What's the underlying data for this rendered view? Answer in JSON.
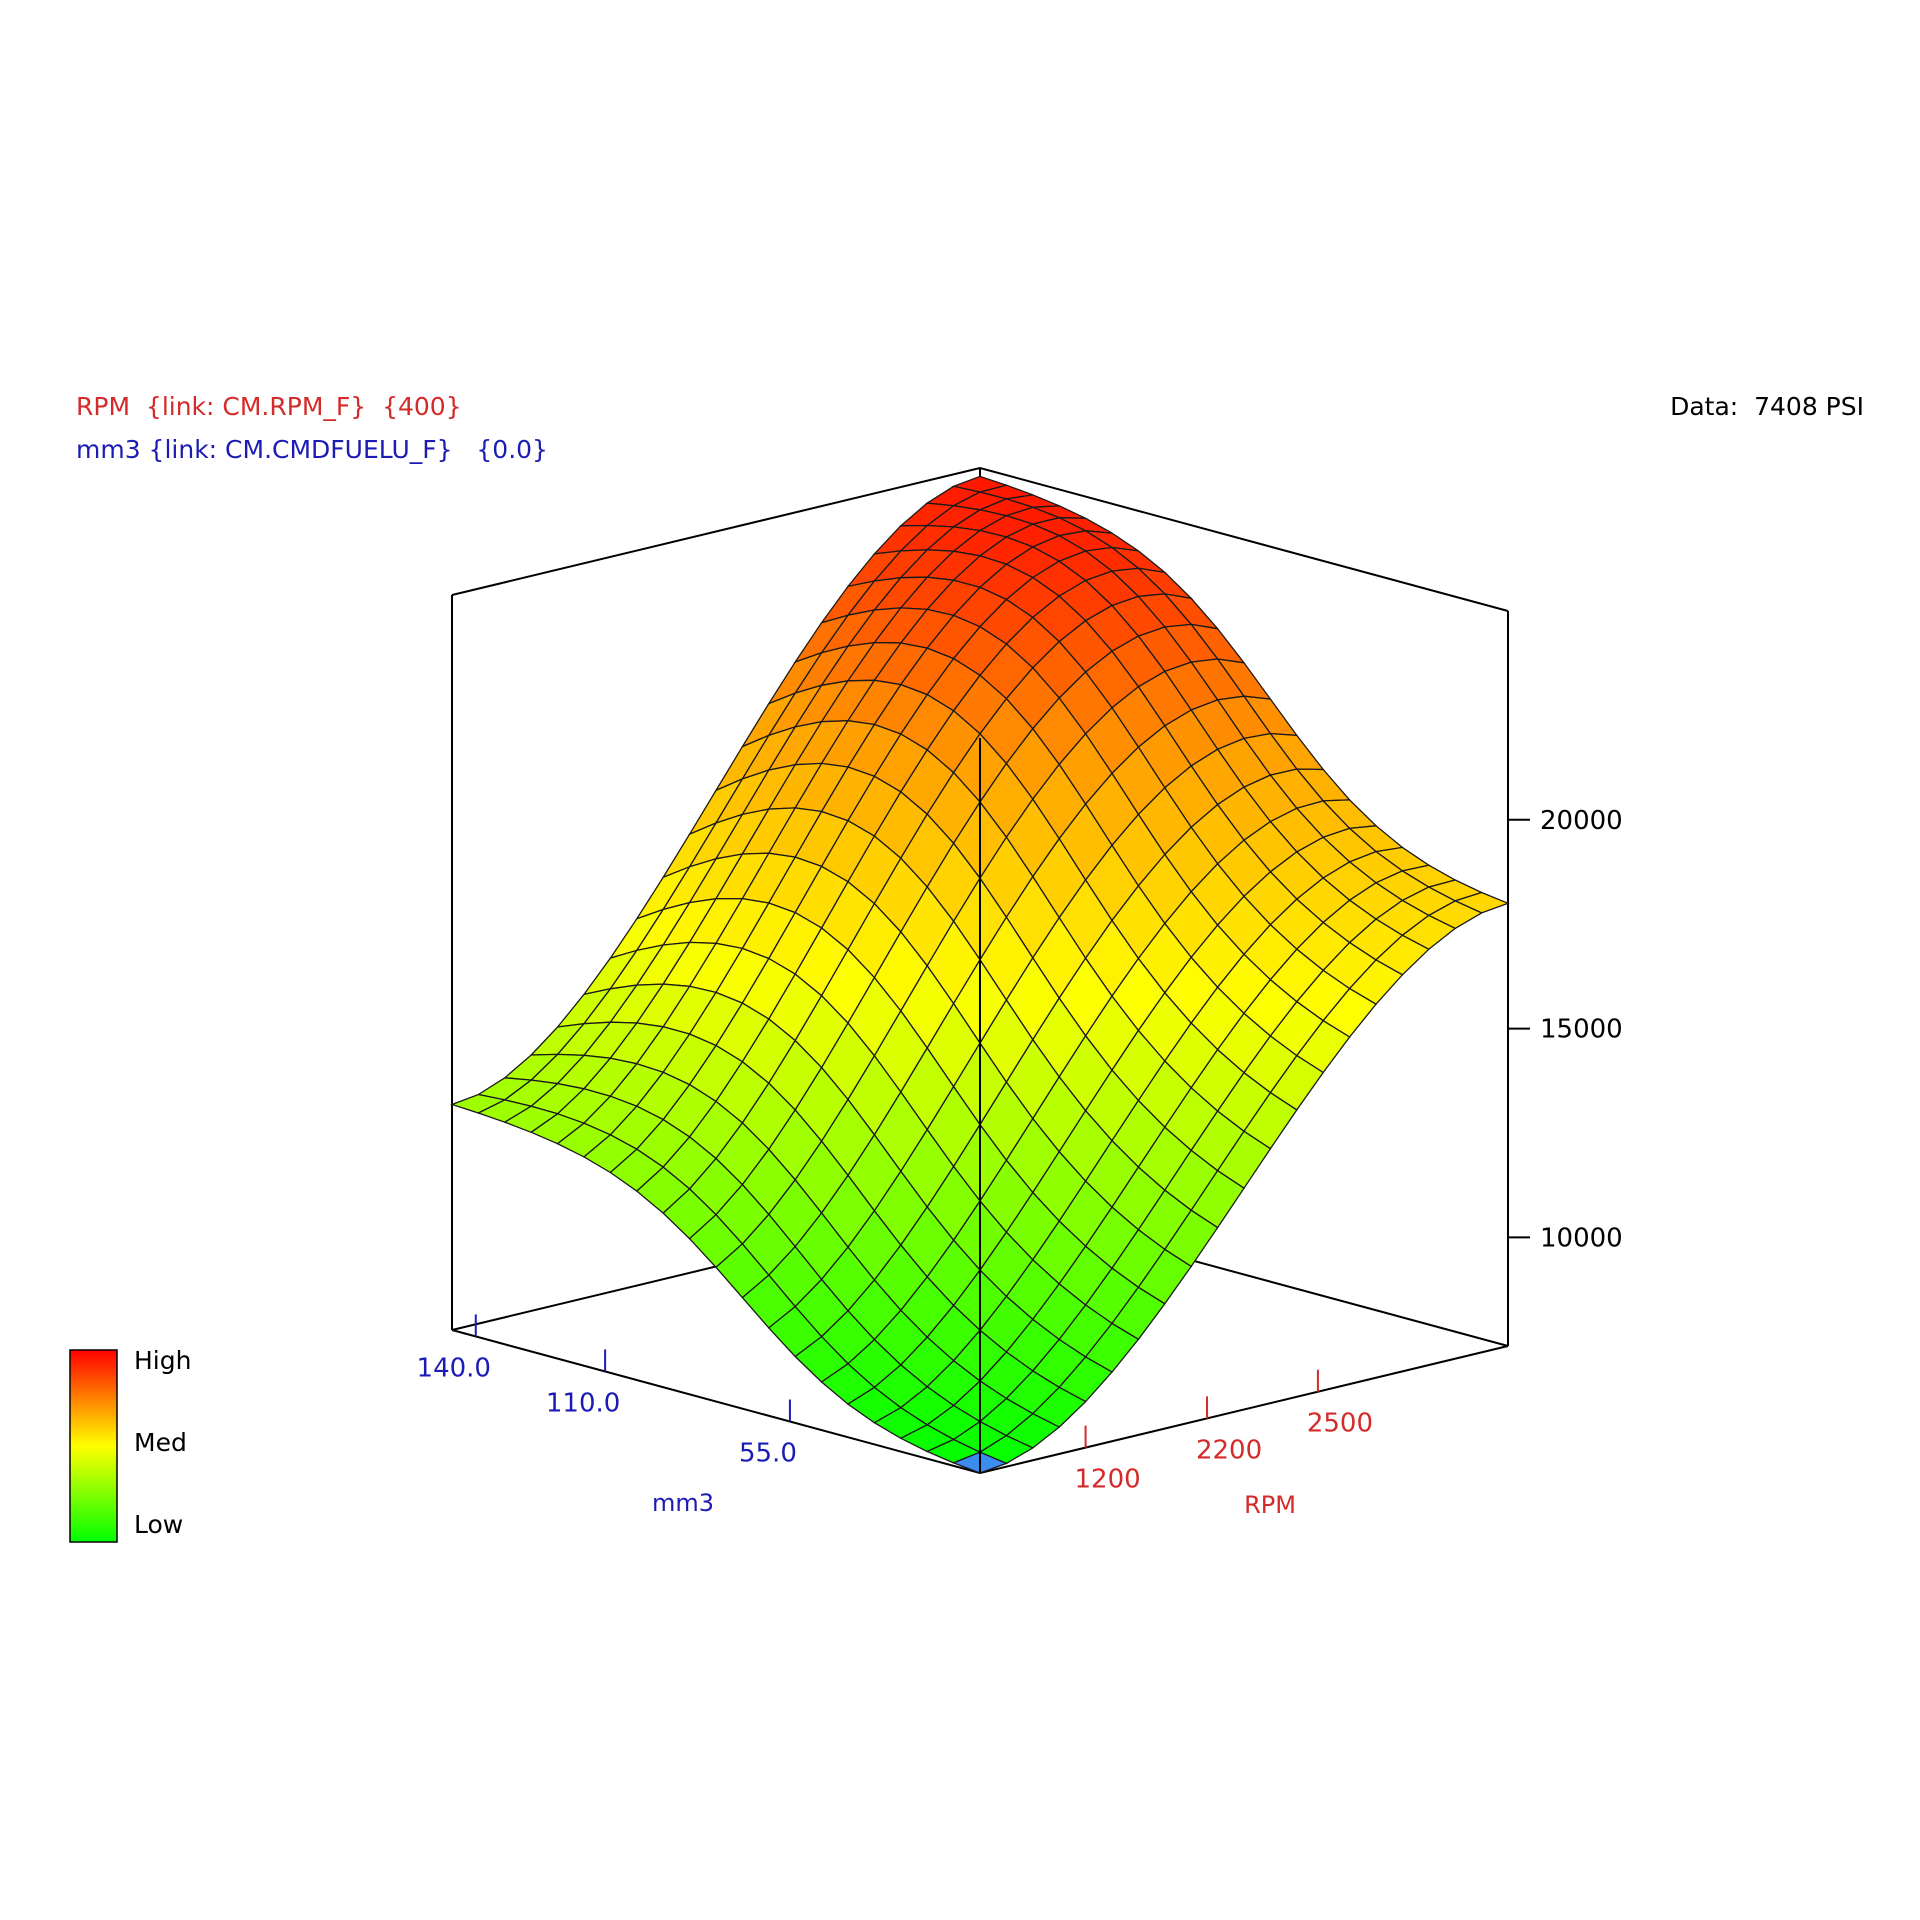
{
  "header": {
    "rpm_line": "RPM  {link: CM.RPM_F}  {400}",
    "mm3_line": "mm3 {link: CM.CMDFUELU_F}   {0.0}",
    "data_line": "Data:  7408 PSI",
    "rpm_color": "#d42a2a",
    "mm3_color": "#1c1cb4"
  },
  "legend": {
    "high": "High",
    "med": "Med",
    "low": "Low",
    "gradient": [
      "#ff0000",
      "#ff8000",
      "#ffff00",
      "#80ff00",
      "#00ff00"
    ]
  },
  "chart_data": {
    "type": "surface3d",
    "title": "",
    "x_axis": {
      "label": "RPM",
      "ticks": [
        "1200",
        "2200",
        "2500"
      ],
      "color": "#d42a2a"
    },
    "y_axis": {
      "label": "mm3",
      "ticks": [
        "140.0",
        "110.0",
        "55.0"
      ],
      "color": "#1c1cb4"
    },
    "z_axis": {
      "label": "",
      "ticks": [
        "20000",
        "15000",
        "10000"
      ],
      "zlim": [
        7400,
        25000
      ]
    },
    "grid_size": [
      21,
      21
    ],
    "corner_values": {
      "low_rpm_low_mm3": 7400,
      "high_rpm_low_mm3": 18000,
      "low_rpm_high_mm3": 12800,
      "high_rpm_high_mm3": 24800
    },
    "marker_color": "#3c8cf0",
    "colormap": [
      "#00ff00",
      "#80ff00",
      "#ffff00",
      "#ffa000",
      "#ff1000"
    ]
  }
}
